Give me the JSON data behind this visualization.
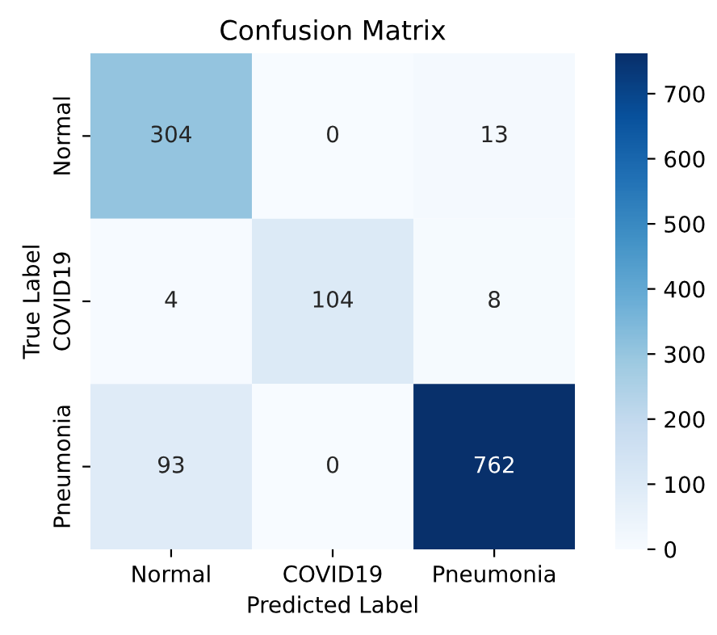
{
  "chart_data": {
    "type": "heatmap",
    "title": "Confusion Matrix",
    "xlabel": "Predicted Label",
    "ylabel": "True Label",
    "categories": [
      "Normal",
      "COVID19",
      "Pneumonia"
    ],
    "y_categories": [
      "Normal",
      "COVID19",
      "Pneumonia"
    ],
    "cells": [
      [
        304,
        0,
        13
      ],
      [
        4,
        104,
        8
      ],
      [
        93,
        0,
        762
      ]
    ],
    "data_labels": true,
    "clim": [
      0,
      762
    ],
    "cticks": [
      0,
      100,
      200,
      300,
      400,
      500,
      600,
      700
    ]
  }
}
